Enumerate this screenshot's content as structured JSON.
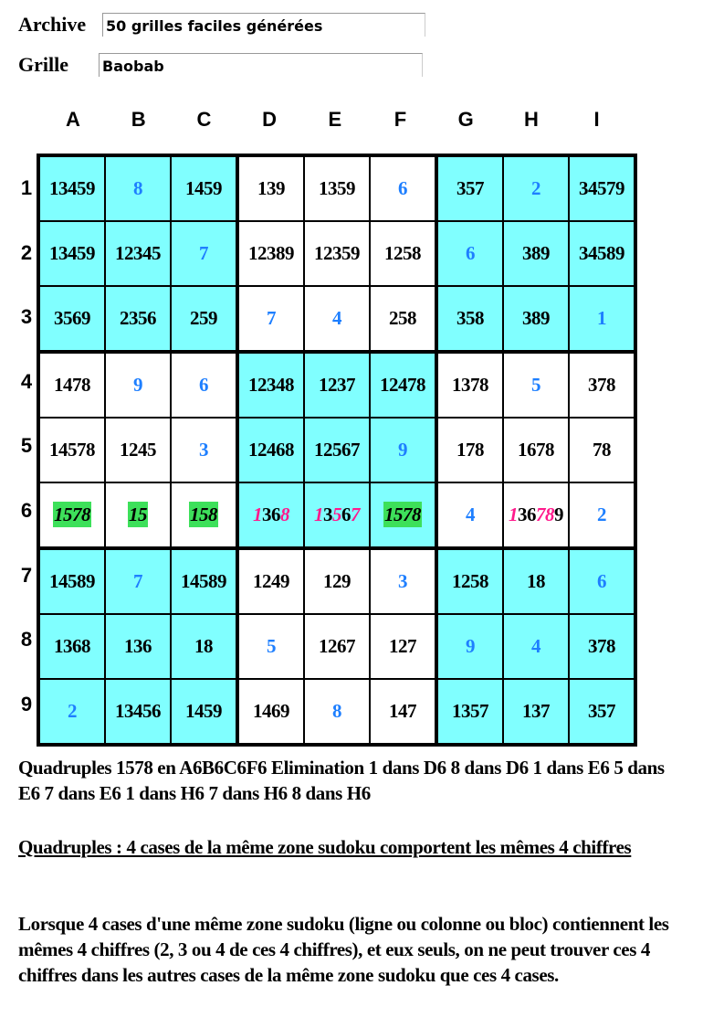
{
  "archive": {
    "label": "Archive",
    "value": "50 grilles faciles générées"
  },
  "grille": {
    "label": "Grille",
    "value": "Baobab"
  },
  "columns": [
    "A",
    "B",
    "C",
    "D",
    "E",
    "F",
    "G",
    "H",
    "I"
  ],
  "rows": [
    "1",
    "2",
    "3",
    "4",
    "5",
    "6",
    "7",
    "8",
    "9"
  ],
  "colors": {
    "given": "#1e7fff",
    "block_shade": "#80ffff",
    "highlight": "#3de05a",
    "eliminated": "#ff1a8c"
  },
  "cells": [
    [
      {
        "t": "13459"
      },
      {
        "t": "8",
        "g": 1
      },
      {
        "t": "1459"
      },
      {
        "t": "139"
      },
      {
        "t": "1359"
      },
      {
        "t": "6",
        "g": 1
      },
      {
        "t": "357"
      },
      {
        "t": "2",
        "g": 1
      },
      {
        "t": "34579"
      }
    ],
    [
      {
        "t": "13459"
      },
      {
        "t": "12345"
      },
      {
        "t": "7",
        "g": 1
      },
      {
        "t": "12389"
      },
      {
        "t": "12359"
      },
      {
        "t": "1258"
      },
      {
        "t": "6",
        "g": 1
      },
      {
        "t": "389"
      },
      {
        "t": "34589"
      }
    ],
    [
      {
        "t": "3569"
      },
      {
        "t": "2356"
      },
      {
        "t": "259"
      },
      {
        "t": "7",
        "g": 1
      },
      {
        "t": "4",
        "g": 1
      },
      {
        "t": "258"
      },
      {
        "t": "358"
      },
      {
        "t": "389"
      },
      {
        "t": "1",
        "g": 1
      }
    ],
    [
      {
        "t": "1478"
      },
      {
        "t": "9",
        "g": 1
      },
      {
        "t": "6",
        "g": 1
      },
      {
        "t": "12348"
      },
      {
        "t": "1237"
      },
      {
        "t": "12478"
      },
      {
        "t": "1378"
      },
      {
        "t": "5",
        "g": 1
      },
      {
        "t": "378"
      }
    ],
    [
      {
        "t": "14578"
      },
      {
        "t": "1245"
      },
      {
        "t": "3",
        "g": 1
      },
      {
        "t": "12468"
      },
      {
        "t": "12567"
      },
      {
        "t": "9",
        "g": 1
      },
      {
        "t": "178"
      },
      {
        "t": "1678"
      },
      {
        "t": "78"
      }
    ],
    [
      {
        "t": "1578",
        "h": 1
      },
      {
        "t": "15",
        "h": 1
      },
      {
        "t": "158",
        "h": 1
      },
      {
        "t": "1368",
        "p": "18"
      },
      {
        "t": "13567",
        "p": "157"
      },
      {
        "t": "1578",
        "h": 1
      },
      {
        "t": "4",
        "g": 1
      },
      {
        "t": "136789",
        "p": "178"
      },
      {
        "t": "2",
        "g": 1
      }
    ],
    [
      {
        "t": "14589"
      },
      {
        "t": "7",
        "g": 1
      },
      {
        "t": "14589"
      },
      {
        "t": "1249"
      },
      {
        "t": "129"
      },
      {
        "t": "3",
        "g": 1
      },
      {
        "t": "1258"
      },
      {
        "t": "18"
      },
      {
        "t": "6",
        "g": 1
      }
    ],
    [
      {
        "t": "1368"
      },
      {
        "t": "136"
      },
      {
        "t": "18"
      },
      {
        "t": "5",
        "g": 1
      },
      {
        "t": "1267"
      },
      {
        "t": "127"
      },
      {
        "t": "9",
        "g": 1
      },
      {
        "t": "4",
        "g": 1
      },
      {
        "t": "378"
      }
    ],
    [
      {
        "t": "2",
        "g": 1
      },
      {
        "t": "13456"
      },
      {
        "t": "1459"
      },
      {
        "t": "1469"
      },
      {
        "t": "8",
        "g": 1
      },
      {
        "t": "147"
      },
      {
        "t": "1357"
      },
      {
        "t": "137"
      },
      {
        "t": "357"
      }
    ]
  ],
  "result": "Quadruples 1578 en A6B6C6F6 Elimination 1 dans D6 8 dans D6 1 dans E6 5 dans E6 7 dans E6 1 dans H6 7 dans H6 8 dans H6",
  "rule_title": "Quadruples : 4 cases de la même zone sudoku comportent les mêmes 4 chiffres",
  "rule_text": "Lorsque 4 cases d'une même zone sudoku (ligne ou colonne ou bloc) contiennent les mêmes 4 chiffres (2, 3 ou 4 de ces 4 chiffres), et eux seuls, on ne peut trouver ces 4 chiffres dans les autres cases de la même zone sudoku que ces 4 cases."
}
